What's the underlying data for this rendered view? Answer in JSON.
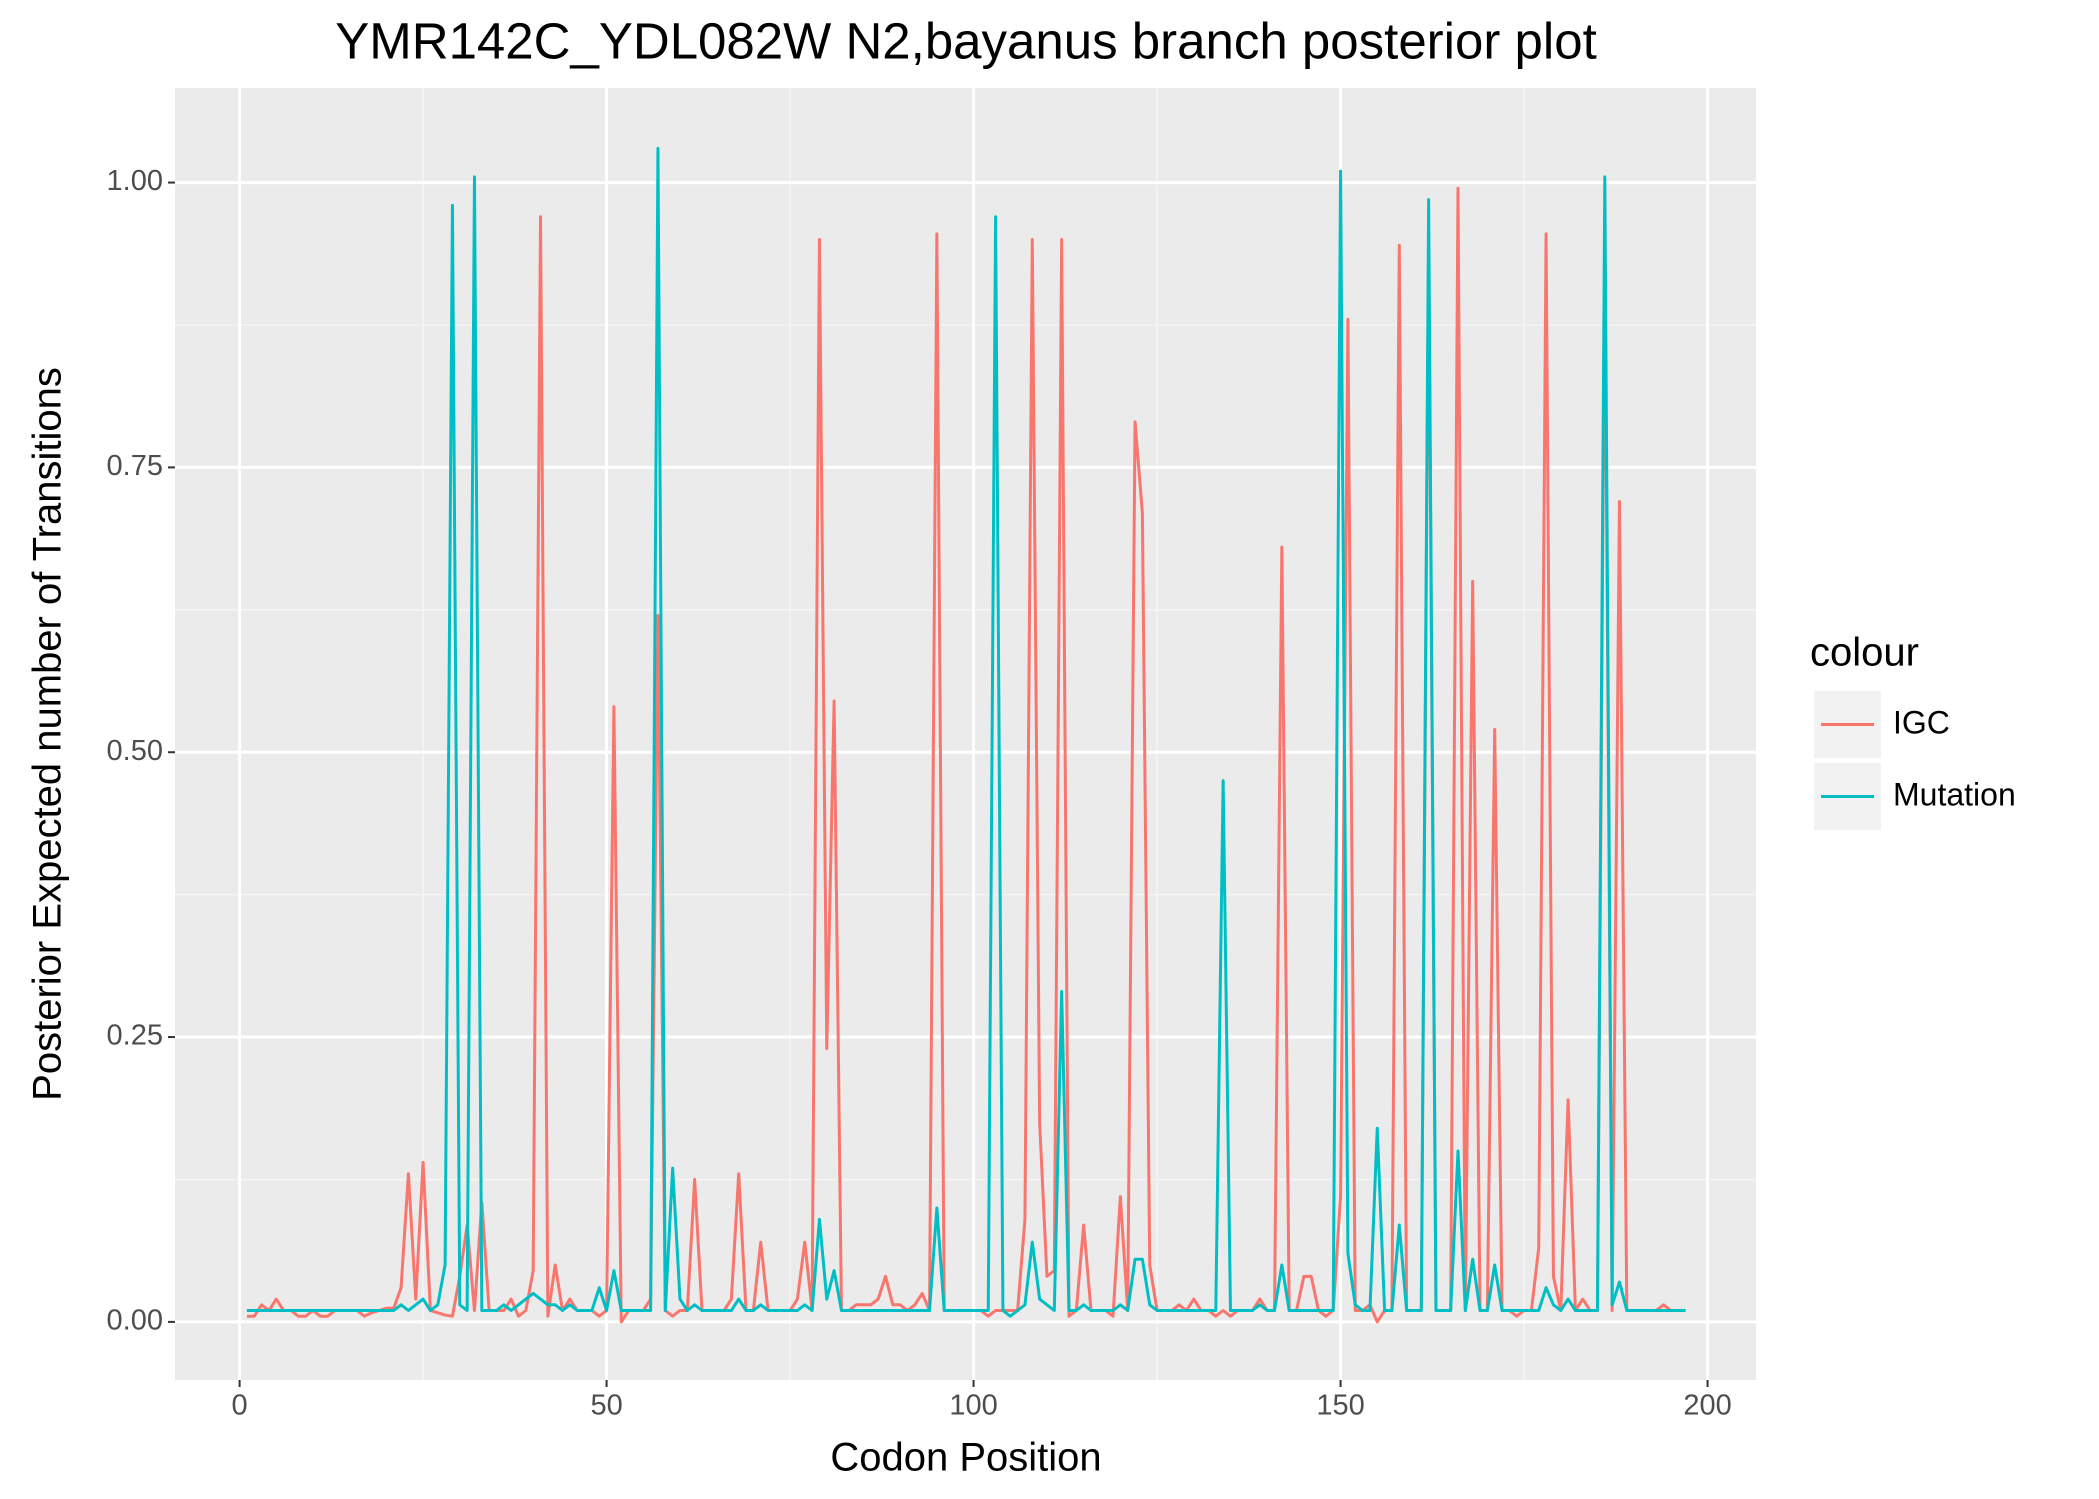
{
  "chart_data": {
    "type": "line",
    "title": "YMR142C_YDL082W N2,bayanus branch posterior plot",
    "x_label": "Codon Position",
    "y_label": "Posterior Expected number of Transitions",
    "legend_title": "colour",
    "legend_position": "right",
    "grid": true,
    "xlim": [
      -8.8,
      206.6
    ],
    "ylim": [
      -0.051,
      1.083
    ],
    "xticks": [
      0,
      50,
      100,
      150,
      200
    ],
    "yticks": [
      {
        "value": 0,
        "label": "0.00"
      },
      {
        "value": 0.25,
        "label": "0.25"
      },
      {
        "value": 0.5,
        "label": "0.50"
      },
      {
        "value": 0.75,
        "label": "0.75"
      },
      {
        "value": 1,
        "label": "1.00"
      }
    ],
    "x": [
      1,
      2,
      3,
      4,
      5,
      6,
      7,
      8,
      9,
      10,
      11,
      12,
      13,
      14,
      15,
      16,
      17,
      18,
      19,
      20,
      21,
      22,
      23,
      24,
      25,
      26,
      27,
      28,
      29,
      30,
      31,
      32,
      33,
      34,
      35,
      36,
      37,
      38,
      39,
      40,
      41,
      42,
      43,
      44,
      45,
      46,
      47,
      48,
      49,
      50,
      51,
      52,
      53,
      54,
      55,
      56,
      57,
      58,
      59,
      60,
      61,
      62,
      63,
      64,
      65,
      66,
      67,
      68,
      69,
      70,
      71,
      72,
      73,
      74,
      75,
      76,
      77,
      78,
      79,
      80,
      81,
      82,
      83,
      84,
      85,
      86,
      87,
      88,
      89,
      90,
      91,
      92,
      93,
      94,
      95,
      96,
      97,
      98,
      99,
      100,
      101,
      102,
      103,
      104,
      105,
      106,
      107,
      108,
      109,
      110,
      111,
      112,
      113,
      114,
      115,
      116,
      117,
      118,
      119,
      120,
      121,
      122,
      123,
      124,
      125,
      126,
      127,
      128,
      129,
      130,
      131,
      132,
      133,
      134,
      135,
      136,
      137,
      138,
      139,
      140,
      141,
      142,
      143,
      144,
      145,
      146,
      147,
      148,
      149,
      150,
      151,
      152,
      153,
      154,
      155,
      156,
      157,
      158,
      159,
      160,
      161,
      162,
      163,
      164,
      165,
      166,
      167,
      168,
      169,
      170,
      171,
      172,
      173,
      174,
      175,
      176,
      177,
      178,
      179,
      180,
      181,
      182,
      183,
      184,
      185,
      186,
      187,
      188,
      189,
      190,
      191,
      192,
      193,
      194,
      195,
      196,
      197
    ],
    "series": [
      {
        "name": "IGC",
        "color": "#f8766d",
        "values": [
          0.005,
          0.005,
          0.015,
          0.01,
          0.02,
          0.01,
          0.01,
          0.005,
          0.005,
          0.01,
          0.005,
          0.005,
          0.01,
          0.01,
          0.01,
          0.01,
          0.005,
          0.008,
          0.01,
          0.012,
          0.012,
          0.03,
          0.13,
          0.02,
          0.14,
          0.01,
          0.008,
          0.006,
          0.005,
          0.04,
          0.085,
          0.01,
          0.105,
          0.01,
          0.01,
          0.01,
          0.02,
          0.005,
          0.01,
          0.045,
          0.97,
          0.005,
          0.05,
          0.01,
          0.02,
          0.01,
          0.01,
          0.01,
          0.005,
          0.01,
          0.54,
          0.0,
          0.01,
          0.01,
          0.01,
          0.02,
          0.62,
          0.01,
          0.005,
          0.01,
          0.01,
          0.125,
          0.01,
          0.01,
          0.01,
          0.01,
          0.02,
          0.13,
          0.01,
          0.01,
          0.07,
          0.01,
          0.01,
          0.01,
          0.01,
          0.02,
          0.07,
          0.01,
          0.95,
          0.24,
          0.545,
          0.01,
          0.01,
          0.015,
          0.015,
          0.015,
          0.02,
          0.04,
          0.015,
          0.015,
          0.01,
          0.015,
          0.025,
          0.01,
          0.955,
          0.01,
          0.01,
          0.01,
          0.01,
          0.01,
          0.01,
          0.005,
          0.01,
          0.01,
          0.01,
          0.01,
          0.09,
          0.95,
          0.175,
          0.04,
          0.045,
          0.95,
          0.005,
          0.01,
          0.085,
          0.01,
          0.01,
          0.01,
          0.005,
          0.11,
          0.01,
          0.79,
          0.71,
          0.05,
          0.01,
          0.01,
          0.01,
          0.015,
          0.01,
          0.02,
          0.01,
          0.01,
          0.005,
          0.01,
          0.005,
          0.01,
          0.01,
          0.01,
          0.02,
          0.01,
          0.01,
          0.68,
          0.01,
          0.01,
          0.04,
          0.04,
          0.01,
          0.005,
          0.01,
          0.11,
          0.88,
          0.01,
          0.01,
          0.015,
          0.0,
          0.01,
          0.01,
          0.945,
          0.01,
          0.01,
          0.01,
          0.955,
          0.01,
          0.01,
          0.01,
          0.995,
          0.01,
          0.65,
          0.01,
          0.01,
          0.52,
          0.01,
          0.01,
          0.005,
          0.01,
          0.01,
          0.065,
          0.955,
          0.04,
          0.01,
          0.195,
          0.01,
          0.02,
          0.01,
          0.01,
          0.94,
          0.01,
          0.72,
          0.01,
          0.01,
          0.01,
          0.01,
          0.01,
          0.015,
          0.01,
          0.01,
          0.01
        ]
      },
      {
        "name": "Mutation",
        "color": "#00bfc4",
        "values": [
          0.01,
          0.01,
          0.01,
          0.01,
          0.01,
          0.01,
          0.01,
          0.01,
          0.01,
          0.01,
          0.01,
          0.01,
          0.01,
          0.01,
          0.01,
          0.01,
          0.01,
          0.01,
          0.01,
          0.01,
          0.01,
          0.015,
          0.01,
          0.015,
          0.02,
          0.01,
          0.015,
          0.05,
          0.98,
          0.015,
          0.01,
          1.005,
          0.01,
          0.01,
          0.01,
          0.015,
          0.01,
          0.015,
          0.02,
          0.025,
          0.02,
          0.015,
          0.015,
          0.01,
          0.015,
          0.01,
          0.01,
          0.01,
          0.03,
          0.01,
          0.045,
          0.01,
          0.01,
          0.01,
          0.01,
          0.01,
          1.03,
          0.01,
          0.135,
          0.02,
          0.01,
          0.015,
          0.01,
          0.01,
          0.01,
          0.01,
          0.01,
          0.02,
          0.01,
          0.01,
          0.015,
          0.01,
          0.01,
          0.01,
          0.01,
          0.01,
          0.015,
          0.01,
          0.09,
          0.02,
          0.045,
          0.01,
          0.01,
          0.01,
          0.01,
          0.01,
          0.01,
          0.01,
          0.01,
          0.01,
          0.01,
          0.01,
          0.01,
          0.01,
          0.1,
          0.01,
          0.01,
          0.01,
          0.01,
          0.01,
          0.01,
          0.01,
          0.97,
          0.01,
          0.005,
          0.01,
          0.015,
          0.07,
          0.02,
          0.015,
          0.01,
          0.29,
          0.01,
          0.01,
          0.015,
          0.01,
          0.01,
          0.01,
          0.01,
          0.015,
          0.01,
          0.055,
          0.055,
          0.015,
          0.01,
          0.01,
          0.01,
          0.01,
          0.01,
          0.01,
          0.01,
          0.01,
          0.01,
          0.475,
          0.01,
          0.01,
          0.01,
          0.01,
          0.015,
          0.01,
          0.01,
          0.05,
          0.01,
          0.01,
          0.01,
          0.01,
          0.01,
          0.01,
          0.01,
          1.01,
          0.06,
          0.015,
          0.01,
          0.01,
          0.17,
          0.01,
          0.01,
          0.085,
          0.01,
          0.01,
          0.01,
          0.985,
          0.01,
          0.01,
          0.01,
          0.15,
          0.01,
          0.055,
          0.01,
          0.01,
          0.05,
          0.01,
          0.01,
          0.01,
          0.01,
          0.01,
          0.01,
          0.03,
          0.015,
          0.01,
          0.02,
          0.01,
          0.01,
          0.01,
          0.01,
          1.005,
          0.015,
          0.035,
          0.01,
          0.01,
          0.01,
          0.01,
          0.01,
          0.01,
          0.01,
          0.01,
          0.01
        ]
      }
    ]
  }
}
